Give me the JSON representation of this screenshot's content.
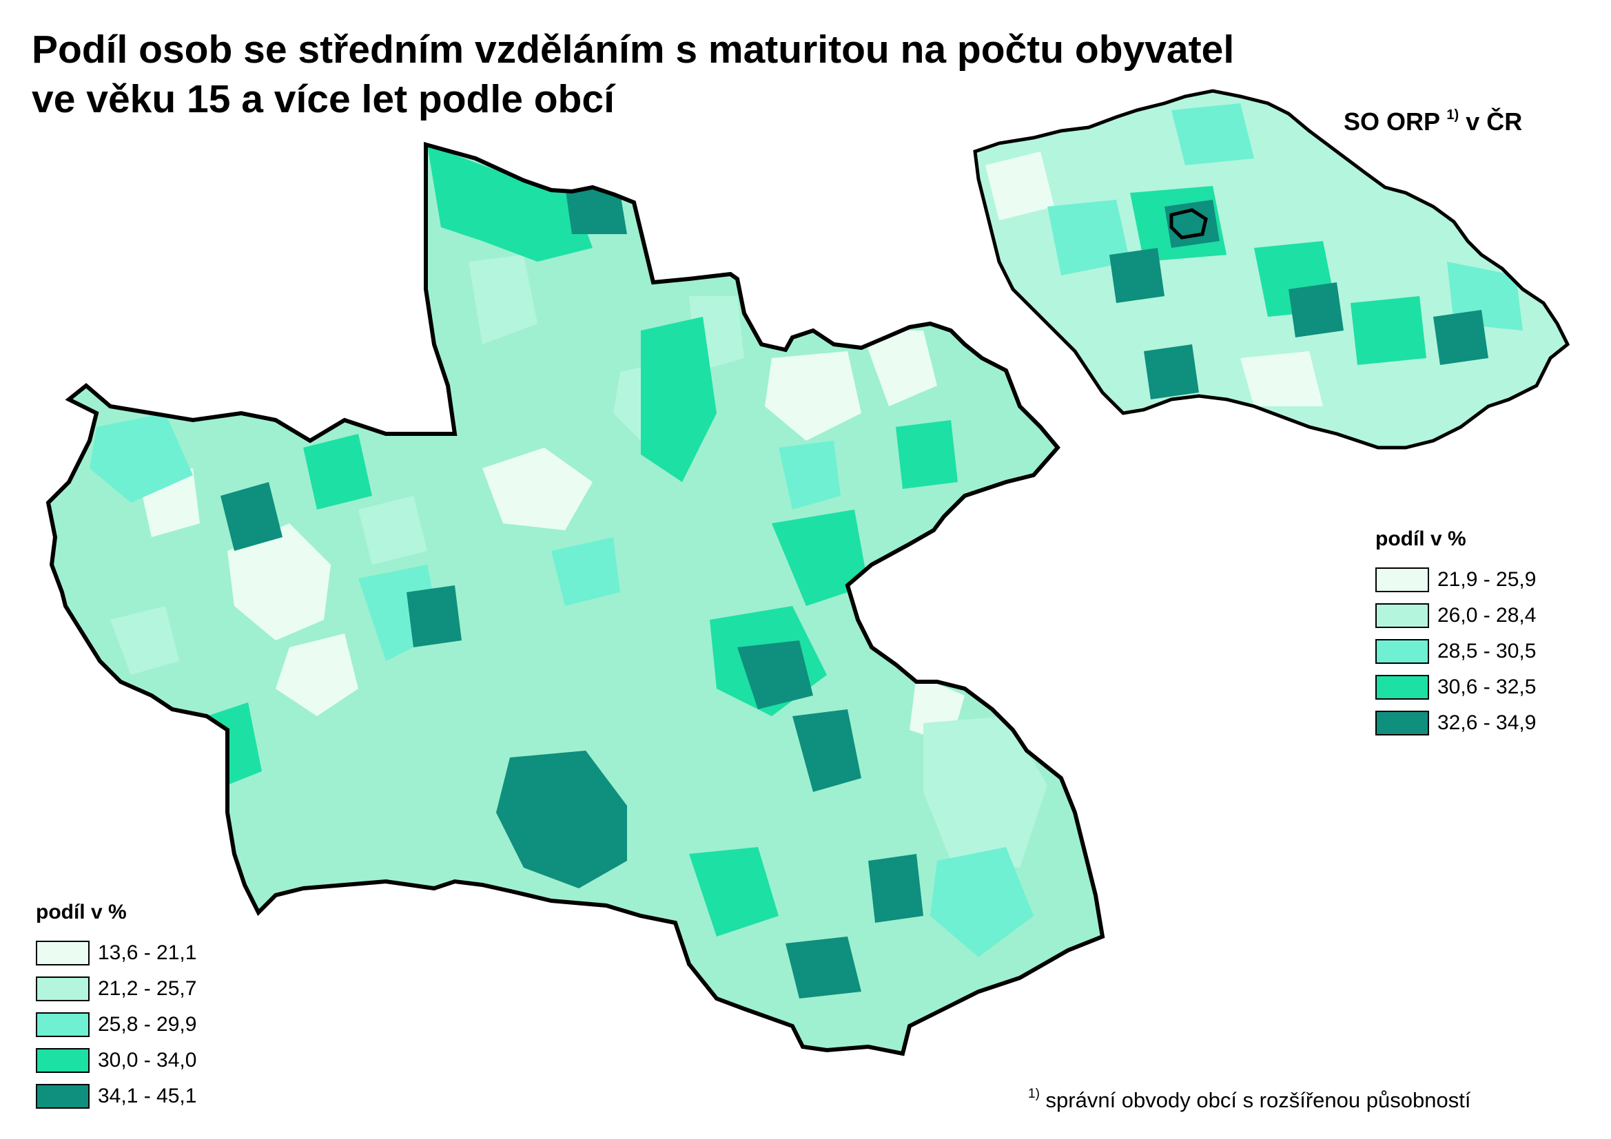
{
  "title": {
    "line1": "Podíl osob se středním vzděláním s maturitou na počtu obyvatel",
    "line2": "ve věku 15 a více let podle obcí"
  },
  "inset": {
    "label": "SO ORP",
    "label_sup": "1)",
    "label_suffix": " v ČR"
  },
  "main_legend": {
    "title": "podíl v %",
    "classes": [
      {
        "label": "13,6 - 21,1",
        "color": "#ebfdf3"
      },
      {
        "label": "21,2 - 25,7",
        "color": "#b4f5dd"
      },
      {
        "label": "25,8 - 29,9",
        "color": "#6ff0d2"
      },
      {
        "label": "30,0 - 34,0",
        "color": "#1de0a4"
      },
      {
        "label": "34,1 - 45,1",
        "color": "#0f8f7e"
      }
    ]
  },
  "inset_legend": {
    "title": "podíl v %",
    "classes": [
      {
        "label": "21,9 - 25,9",
        "color": "#ebfdf3"
      },
      {
        "label": "26,0 - 28,4",
        "color": "#b4f5dd"
      },
      {
        "label": "28,5 - 30,5",
        "color": "#6ff0d2"
      },
      {
        "label": "30,6 - 32,5",
        "color": "#1de0a4"
      },
      {
        "label": "32,6 - 34,9",
        "color": "#0f8f7e"
      }
    ]
  },
  "footnote": {
    "sup": "1)",
    "text": " správní obvody obcí s rozšířenou působností"
  }
}
